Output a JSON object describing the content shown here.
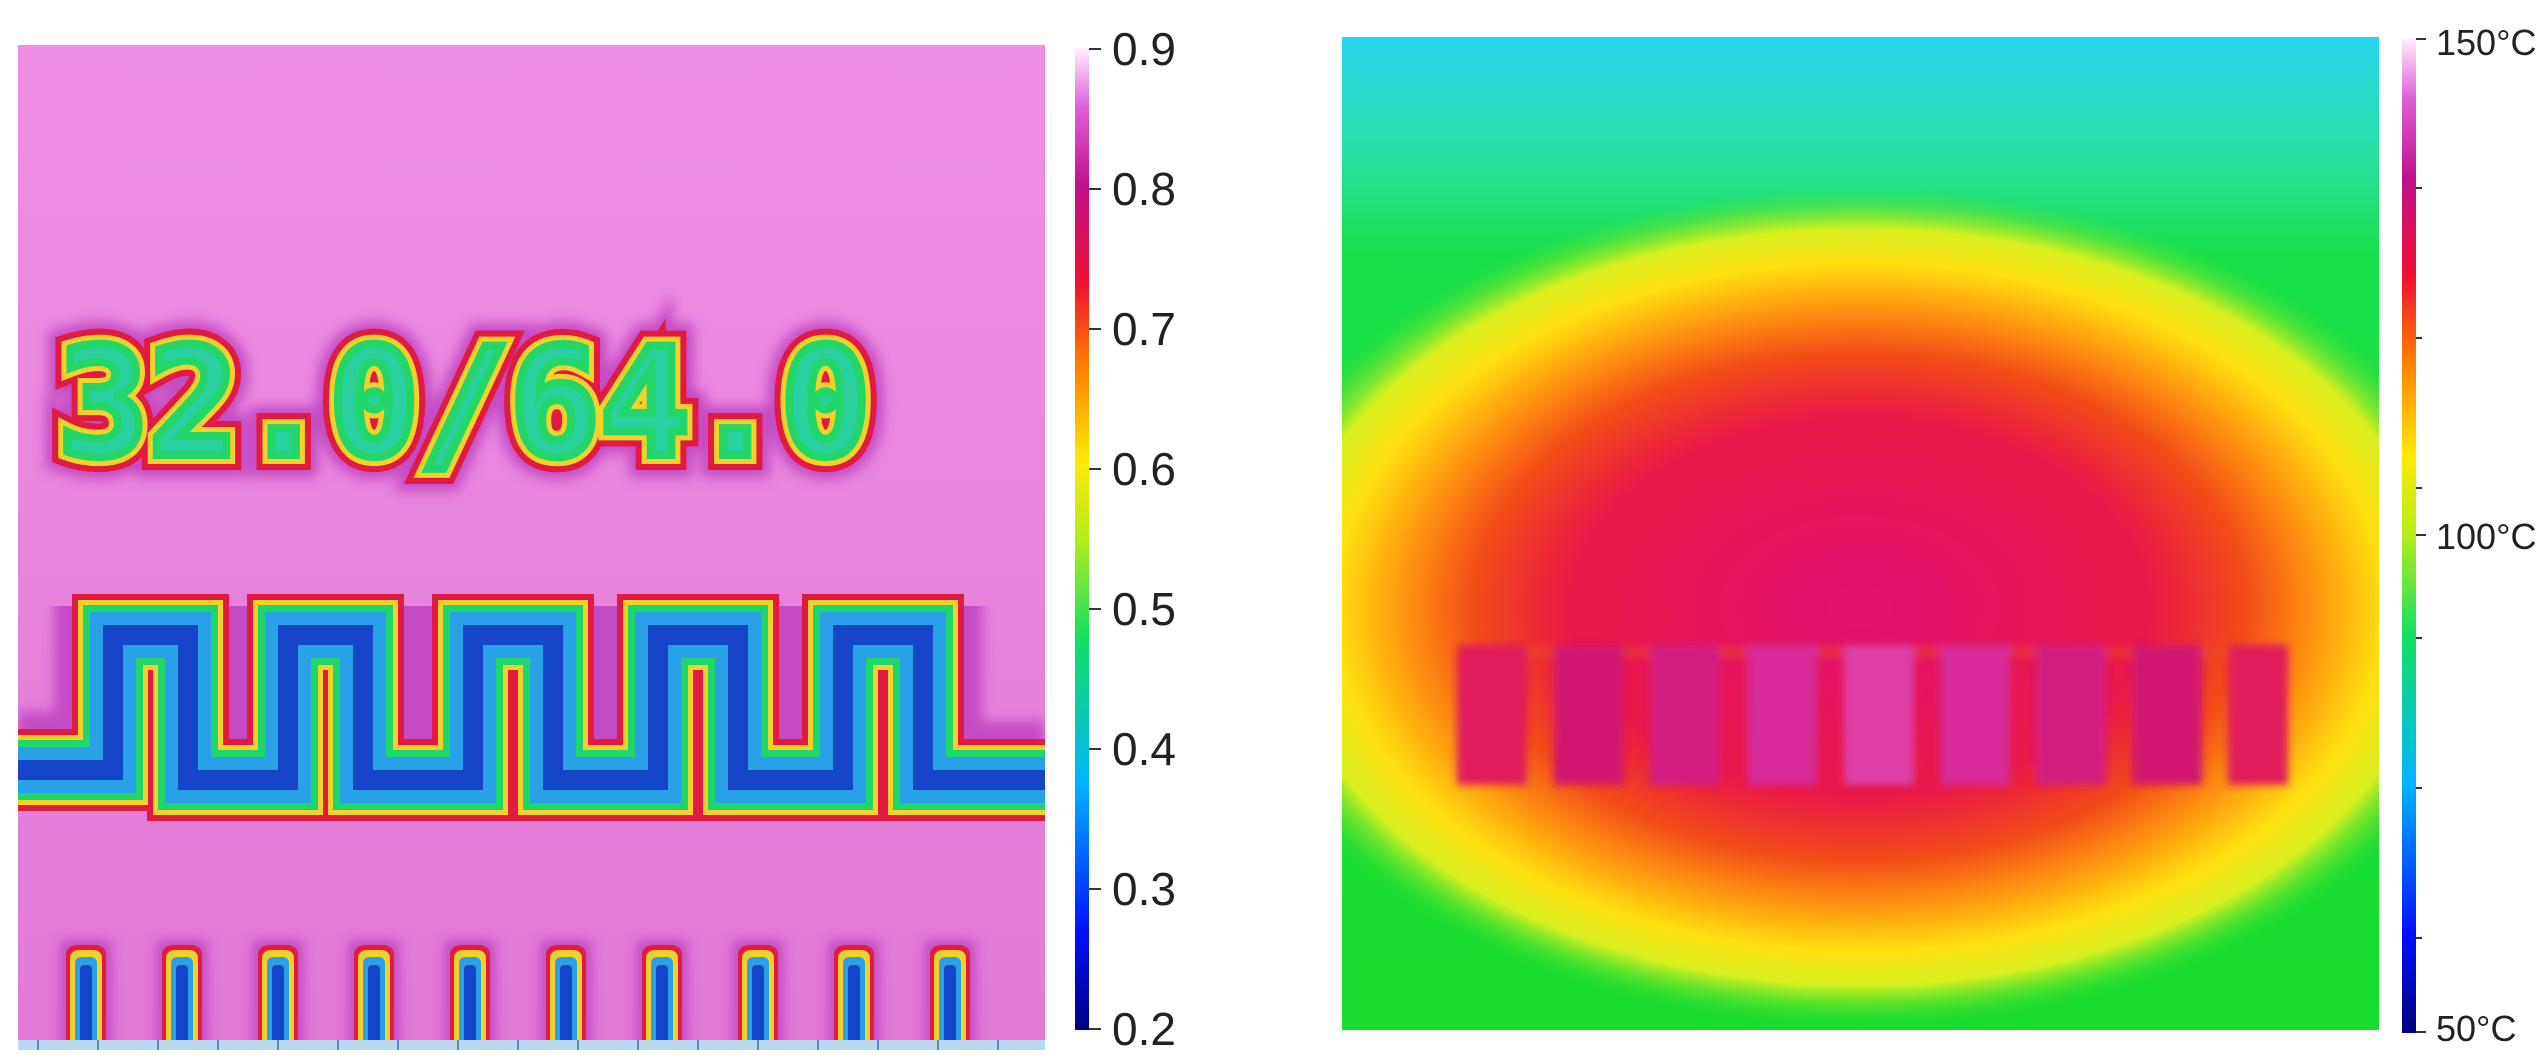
{
  "left_panel": {
    "overlay_text": "32.0/64.0",
    "colorbar": {
      "min": 0.2,
      "max": 0.9,
      "ticks": [
        "0.9",
        "0.8",
        "0.7",
        "0.6",
        "0.5",
        "0.4",
        "0.3",
        "0.2"
      ],
      "colormap": "jet-magenta"
    }
  },
  "right_panel": {
    "colorbar": {
      "min_label": "50°C",
      "mid_label": "100°C",
      "max_label": "150°C",
      "colormap": "jet-magenta"
    }
  },
  "colors": {
    "background_left": "#e87fd9",
    "background_right": "#22e022",
    "hot_core": "#e8106a",
    "cool_top": "#28d6ee"
  }
}
